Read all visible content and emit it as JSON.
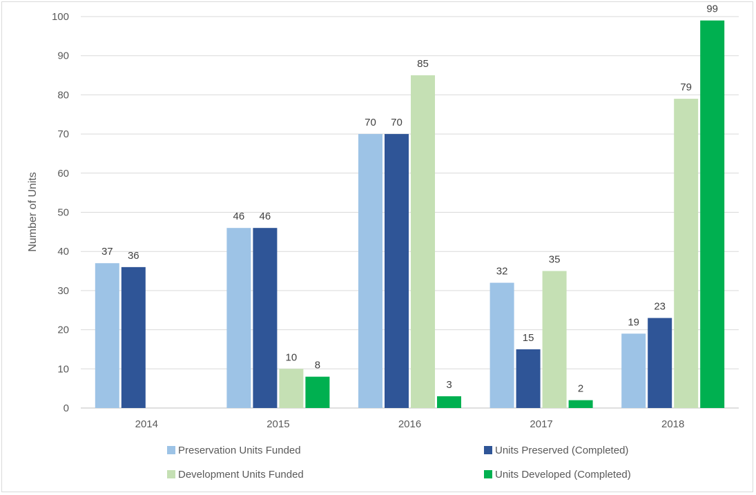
{
  "chart_data": {
    "type": "bar",
    "title": "",
    "xlabel": "",
    "ylabel": "Number of Units",
    "ylim": [
      0,
      100
    ],
    "ytick_step": 10,
    "grid": true,
    "legend_position": "bottom",
    "categories": [
      "2014",
      "2015",
      "2016",
      "2017",
      "2018"
    ],
    "series": [
      {
        "name": "Preservation Units Funded",
        "color": "#9dc3e6",
        "values": [
          37,
          46,
          70,
          32,
          19
        ]
      },
      {
        "name": "Units Preserved (Completed)",
        "color": "#2f5597",
        "values": [
          36,
          46,
          70,
          15,
          23
        ]
      },
      {
        "name": "Development Units Funded",
        "color": "#c5e0b4",
        "values": [
          null,
          10,
          85,
          35,
          79
        ]
      },
      {
        "name": "Units Developed (Completed)",
        "color": "#00b050",
        "values": [
          null,
          8,
          3,
          2,
          99
        ]
      }
    ]
  }
}
